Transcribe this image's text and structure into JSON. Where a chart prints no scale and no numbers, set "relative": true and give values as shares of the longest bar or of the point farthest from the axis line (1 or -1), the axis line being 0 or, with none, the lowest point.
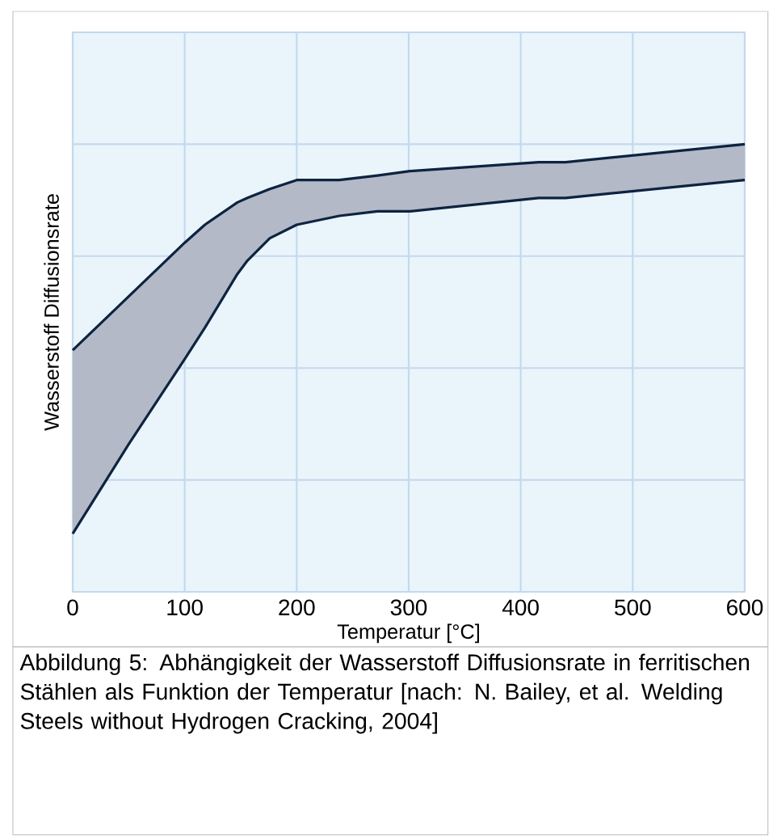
{
  "chart_data": {
    "type": "area",
    "relative": true,
    "xlabel": "Temperatur [°C]",
    "ylabel": "Wasserstoff Diffusionsrate",
    "xlim": [
      0,
      600
    ],
    "xticks": [
      {
        "value": 0,
        "label": "0"
      },
      {
        "value": 100,
        "label": "100"
      },
      {
        "value": 200,
        "label": "200"
      },
      {
        "value": 300,
        "label": "300"
      },
      {
        "value": 400,
        "label": "400"
      },
      {
        "value": 500,
        "label": "500"
      },
      {
        "value": 600,
        "label": "600"
      }
    ],
    "grid": true,
    "annotations": [
      "Abbildung 5: Abhängigkeit der Wasserstoff Diffusionsrate in ferritischen Stählen als Funktion der Temperatur [nach: N. Bailey, et al. Welding Steels without Hydrogen Cracking, 2004]"
    ],
    "series": [
      {
        "type": "line",
        "color": "#0d2340",
        "x": [
          0,
          50,
          100,
          118,
          147,
          156,
          176,
          200,
          238,
          272,
          301,
          416,
          440,
          600
        ],
        "values": [
          0.13,
          0.33,
          0.52,
          0.59,
          0.71,
          0.74,
          0.79,
          0.82,
          0.84,
          0.85,
          0.85,
          0.88,
          0.88,
          0.92
        ]
      },
      {
        "color": "#b3b9c6",
        "x": [
          0,
          50,
          100,
          118,
          147,
          156,
          176,
          200,
          238,
          272,
          301,
          416,
          440,
          600
        ],
        "values": [
          0.54,
          0.66,
          0.78,
          0.82,
          0.87,
          0.88,
          0.9,
          0.92,
          0.92,
          0.93,
          0.94,
          0.96,
          0.96,
          1.0
        ]
      }
    ]
  }
}
